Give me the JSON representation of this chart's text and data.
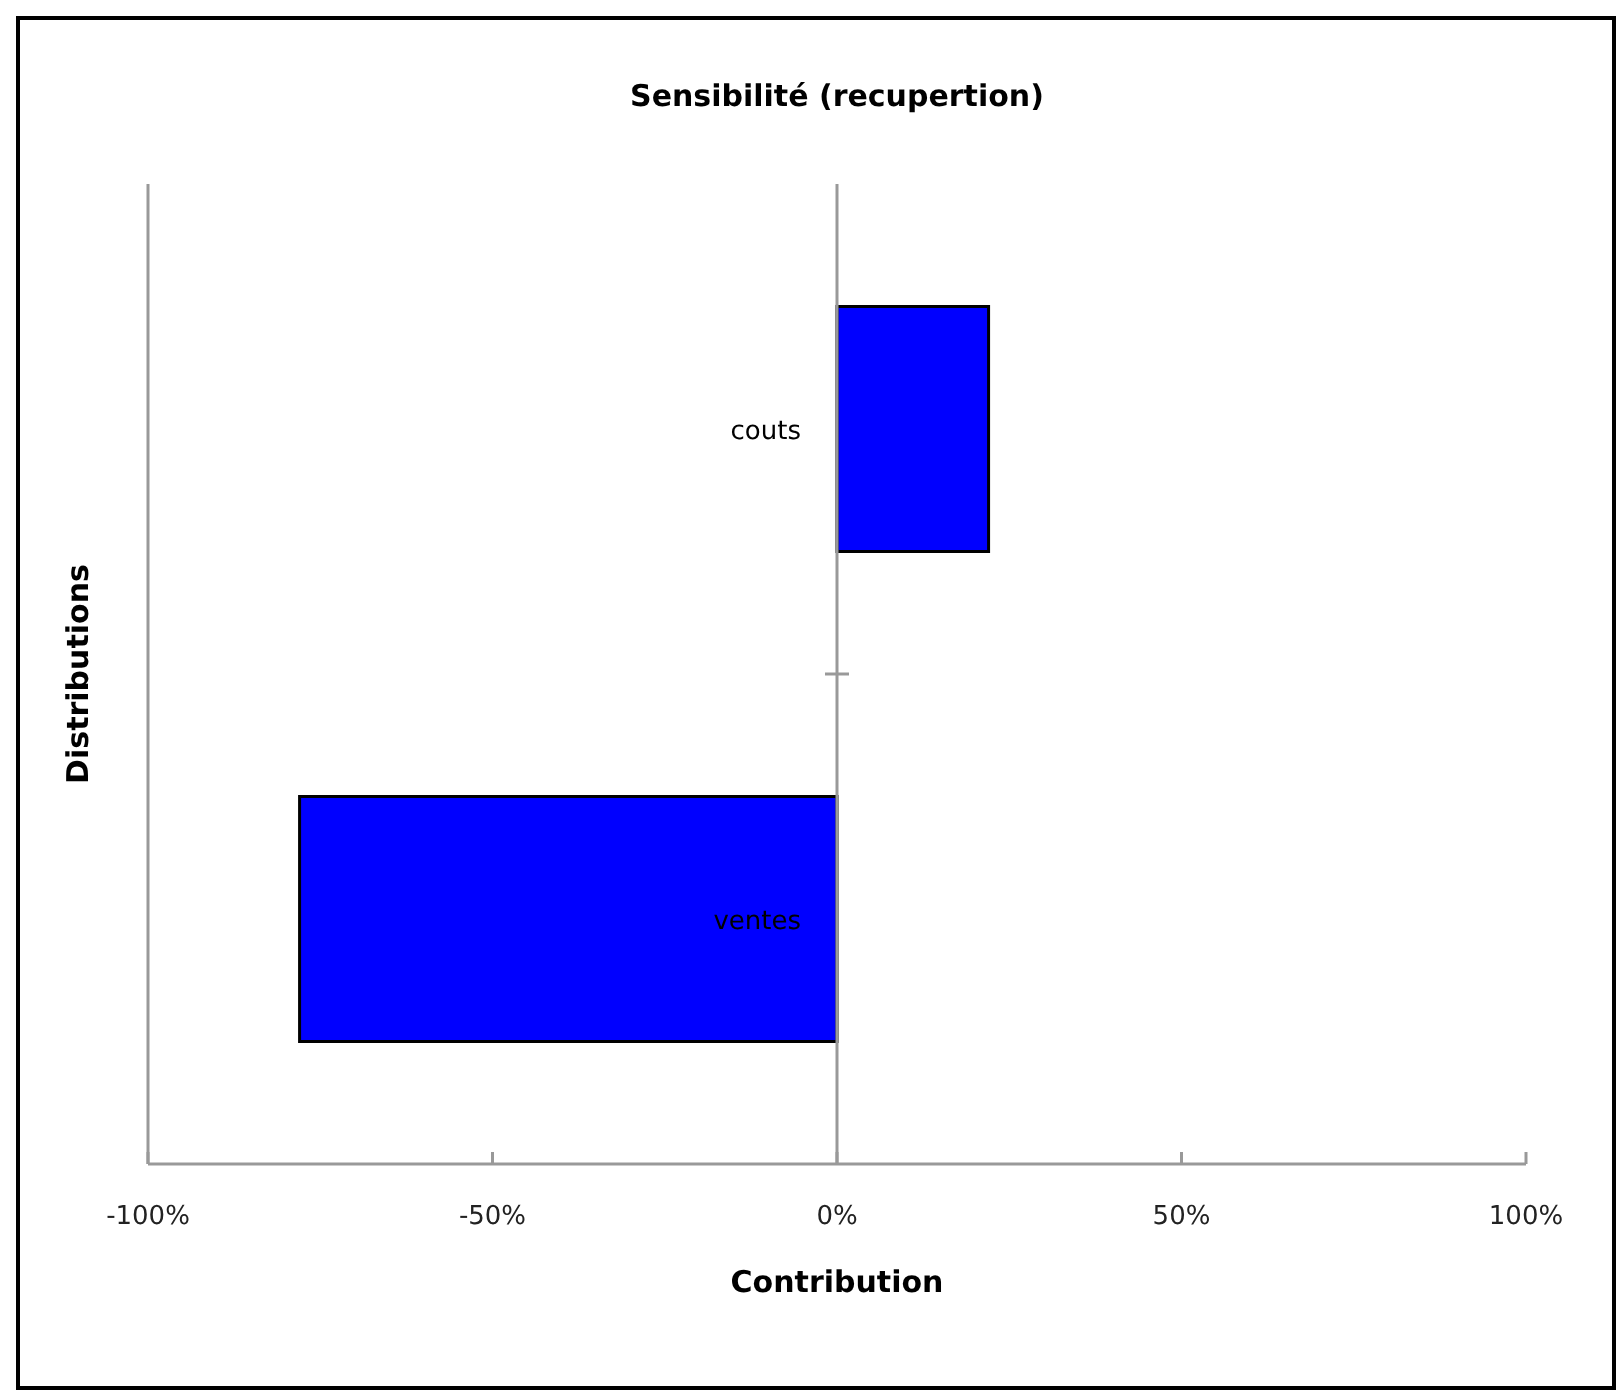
{
  "chart_data": {
    "type": "bar",
    "orientation": "horizontal",
    "title": "Sensibilité (recupertion)",
    "xlabel": "Contribution",
    "ylabel": "Distributions",
    "categories": [
      "couts",
      "ventes"
    ],
    "series": [
      {
        "color": "#0000ff",
        "values": [
          22,
          -78
        ]
      }
    ],
    "xlim": [
      -100,
      100
    ],
    "xticks": [
      {
        "value": -100,
        "label": "-100%"
      },
      {
        "value": -50,
        "label": "-50%"
      },
      {
        "value": 0,
        "label": "0%"
      },
      {
        "value": 50,
        "label": "50%"
      },
      {
        "value": 100,
        "label": "100%"
      }
    ],
    "grid": false
  }
}
